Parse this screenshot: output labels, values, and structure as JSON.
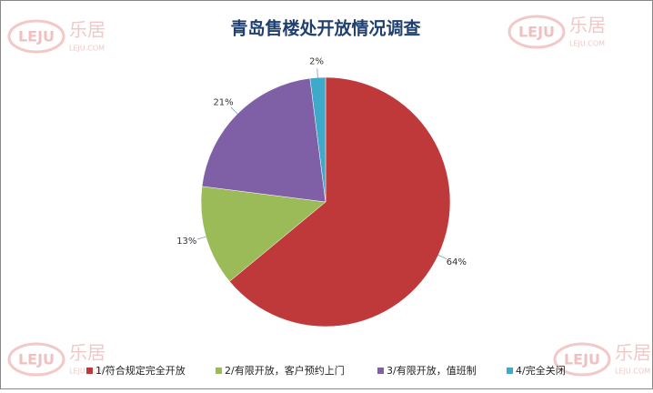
{
  "chart_data": {
    "type": "pie",
    "title": "青岛售楼处开放情况调查",
    "categories": [
      "1/符合规定完全开放",
      "2/有限开放，客户预约上门",
      "3/有限开放，值班制",
      "4/完全关闭"
    ],
    "values": [
      64,
      13,
      21,
      2
    ],
    "value_labels": [
      "64%",
      "13%",
      "21%",
      "2%"
    ],
    "colors": [
      "#c0393a",
      "#9bbb59",
      "#7f5fa6",
      "#3fa9c9"
    ],
    "legend": "bottom"
  },
  "watermark": {
    "logo": "LEJU",
    "name": "乐居",
    "url": "LEJU.COM"
  }
}
